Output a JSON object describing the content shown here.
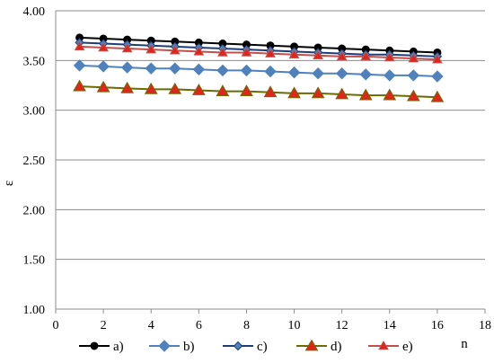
{
  "chart_data": {
    "type": "line",
    "title": "",
    "xlabel": "n",
    "ylabel": "ε",
    "xlim": [
      0,
      18
    ],
    "ylim": [
      1.0,
      4.0
    ],
    "xticks": [
      "0",
      "2",
      "4",
      "6",
      "8",
      "10",
      "12",
      "14",
      "16",
      "18"
    ],
    "yticks": [
      "1.00",
      "1.50",
      "2.00",
      "2.50",
      "3.00",
      "3.50",
      "4.00"
    ],
    "grid": "horizontal",
    "legend_position": "bottom",
    "x": [
      1,
      2,
      3,
      4,
      5,
      6,
      7,
      8,
      9,
      10,
      11,
      12,
      13,
      14,
      15,
      16
    ],
    "series": [
      {
        "name": "a)",
        "marker": "circle",
        "line_color": "#000000",
        "fill_color": "#000000",
        "values": [
          3.73,
          3.72,
          3.71,
          3.7,
          3.69,
          3.68,
          3.67,
          3.66,
          3.65,
          3.64,
          3.63,
          3.62,
          3.61,
          3.6,
          3.59,
          3.58
        ]
      },
      {
        "name": "b)",
        "marker": "diamond-large",
        "line_color": "#4f81bd",
        "fill_color": "#4f81bd",
        "values": [
          3.45,
          3.44,
          3.43,
          3.42,
          3.42,
          3.41,
          3.4,
          3.4,
          3.39,
          3.38,
          3.37,
          3.37,
          3.36,
          3.35,
          3.35,
          3.34
        ]
      },
      {
        "name": "c)",
        "marker": "diamond-small",
        "line_color": "#1f3d7a",
        "fill_color": "#4f81bd",
        "values": [
          3.68,
          3.67,
          3.66,
          3.65,
          3.64,
          3.63,
          3.62,
          3.61,
          3.6,
          3.59,
          3.58,
          3.57,
          3.56,
          3.56,
          3.55,
          3.54
        ]
      },
      {
        "name": "d)",
        "marker": "triangle-large",
        "line_color": "#6b6b00",
        "fill_color": "#e0261c",
        "values": [
          3.24,
          3.23,
          3.22,
          3.21,
          3.21,
          3.2,
          3.19,
          3.19,
          3.18,
          3.17,
          3.17,
          3.16,
          3.15,
          3.15,
          3.14,
          3.13
        ]
      },
      {
        "name": "e)",
        "marker": "triangle-small",
        "line_color": "#c0504d",
        "fill_color": "#e0261c",
        "values": [
          3.64,
          3.63,
          3.62,
          3.61,
          3.6,
          3.59,
          3.58,
          3.58,
          3.57,
          3.56,
          3.55,
          3.54,
          3.54,
          3.53,
          3.52,
          3.51
        ]
      }
    ]
  }
}
